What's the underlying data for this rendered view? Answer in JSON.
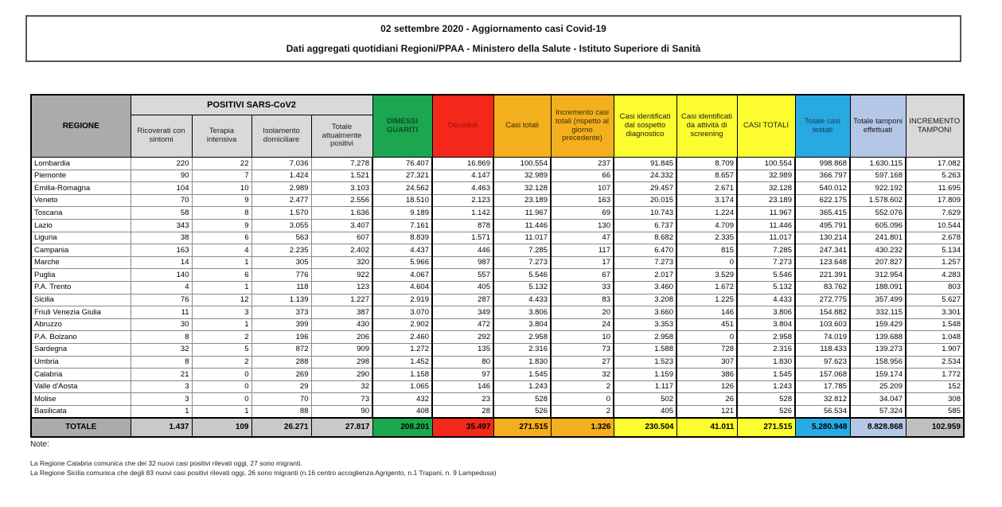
{
  "title": {
    "line1": "02 settembre 2020 - Aggiornamento casi Covid-19",
    "line2": "Dati aggregati quotidiani Regioni/PPAA - Ministero della Salute - Istituto Superiore di Sanità"
  },
  "table": {
    "header": {
      "regione": "REGIONE",
      "positivi_group": "POSITIVI SARS-CoV2",
      "sub": [
        "Ricoverati con sintomi",
        "Terapia intensiva",
        "Isolamento domiciliare",
        "Totale attualmente positivi"
      ],
      "colored": [
        "DIMESSI GUARITI",
        "Deceduti",
        "Casi totali",
        "Incremento casi totali (rispetto al giorno precedente)",
        "Casi identificati dal sospetto diagnostico",
        "Casi identificati da attività di screening",
        "CASI TOTALI",
        "Totale casi testati",
        "Totale tamponi effettuati",
        "INCREMENTO TAMPONI"
      ]
    },
    "rows": [
      {
        "region": "Lombardia",
        "values": [
          "220",
          "22",
          "7.036",
          "7.278",
          "76.407",
          "16.869",
          "100.554",
          "237",
          "91.845",
          "8.709",
          "100.554",
          "998.868",
          "1.630.115",
          "17.082"
        ]
      },
      {
        "region": "Piemonte",
        "values": [
          "90",
          "7",
          "1.424",
          "1.521",
          "27.321",
          "4.147",
          "32.989",
          "66",
          "24.332",
          "8.657",
          "32.989",
          "366.797",
          "597.168",
          "5.263"
        ]
      },
      {
        "region": "Emilia-Romagna",
        "values": [
          "104",
          "10",
          "2.989",
          "3.103",
          "24.562",
          "4.463",
          "32.128",
          "107",
          "29.457",
          "2.671",
          "32.128",
          "540.012",
          "922.192",
          "11.695"
        ]
      },
      {
        "region": "Veneto",
        "values": [
          "70",
          "9",
          "2.477",
          "2.556",
          "18.510",
          "2.123",
          "23.189",
          "163",
          "20.015",
          "3.174",
          "23.189",
          "622.175",
          "1.578.602",
          "17.809"
        ]
      },
      {
        "region": "Toscana",
        "values": [
          "58",
          "8",
          "1.570",
          "1.636",
          "9.189",
          "1.142",
          "11.967",
          "69",
          "10.743",
          "1.224",
          "11.967",
          "365.415",
          "552.076",
          "7.629"
        ]
      },
      {
        "region": "Lazio",
        "values": [
          "343",
          "9",
          "3.055",
          "3.407",
          "7.161",
          "878",
          "11.446",
          "130",
          "6.737",
          "4.709",
          "11.446",
          "495.791",
          "605.096",
          "10.544"
        ]
      },
      {
        "region": "Liguria",
        "values": [
          "38",
          "6",
          "563",
          "607",
          "8.839",
          "1.571",
          "11.017",
          "47",
          "8.682",
          "2.335",
          "11.017",
          "130.214",
          "241.801",
          "2.678"
        ]
      },
      {
        "region": "Campania",
        "values": [
          "163",
          "4",
          "2.235",
          "2.402",
          "4.437",
          "446",
          "7.285",
          "117",
          "6.470",
          "815",
          "7.285",
          "247.341",
          "430.232",
          "5.134"
        ]
      },
      {
        "region": "Marche",
        "values": [
          "14",
          "1",
          "305",
          "320",
          "5.966",
          "987",
          "7.273",
          "17",
          "7.273",
          "0",
          "7.273",
          "123.648",
          "207.827",
          "1.257"
        ]
      },
      {
        "region": "Puglia",
        "values": [
          "140",
          "6",
          "776",
          "922",
          "4.067",
          "557",
          "5.546",
          "67",
          "2.017",
          "3.529",
          "5.546",
          "221.391",
          "312.954",
          "4.283"
        ]
      },
      {
        "region": "P.A. Trento",
        "values": [
          "4",
          "1",
          "118",
          "123",
          "4.604",
          "405",
          "5.132",
          "33",
          "3.460",
          "1.672",
          "5.132",
          "83.762",
          "188.091",
          "803"
        ]
      },
      {
        "region": "Sicilia",
        "values": [
          "76",
          "12",
          "1.139",
          "1.227",
          "2.919",
          "287",
          "4.433",
          "83",
          "3.208",
          "1.225",
          "4.433",
          "272.775",
          "357.499",
          "5.627"
        ]
      },
      {
        "region": "Friuli Venezia Giulia",
        "values": [
          "11",
          "3",
          "373",
          "387",
          "3.070",
          "349",
          "3.806",
          "20",
          "3.660",
          "146",
          "3.806",
          "154.882",
          "332.115",
          "3.301"
        ]
      },
      {
        "region": "Abruzzo",
        "values": [
          "30",
          "1",
          "399",
          "430",
          "2.902",
          "472",
          "3.804",
          "24",
          "3.353",
          "451",
          "3.804",
          "103.603",
          "159.429",
          "1.548"
        ]
      },
      {
        "region": "P.A. Bolzano",
        "values": [
          "8",
          "2",
          "196",
          "206",
          "2.460",
          "292",
          "2.958",
          "10",
          "2.958",
          "0",
          "2.958",
          "74.019",
          "139.688",
          "1.048"
        ]
      },
      {
        "region": "Sardegna",
        "values": [
          "32",
          "5",
          "872",
          "909",
          "1.272",
          "135",
          "2.316",
          "73",
          "1.588",
          "728",
          "2.316",
          "118.433",
          "139.273",
          "1.907"
        ]
      },
      {
        "region": "Umbria",
        "values": [
          "8",
          "2",
          "288",
          "298",
          "1.452",
          "80",
          "1.830",
          "27",
          "1.523",
          "307",
          "1.830",
          "97.623",
          "158.956",
          "2.534"
        ]
      },
      {
        "region": "Calabria",
        "values": [
          "21",
          "0",
          "269",
          "290",
          "1.158",
          "97",
          "1.545",
          "32",
          "1.159",
          "386",
          "1.545",
          "157.068",
          "159.174",
          "1.772"
        ]
      },
      {
        "region": "Valle d'Aosta",
        "values": [
          "3",
          "0",
          "29",
          "32",
          "1.065",
          "146",
          "1.243",
          "2",
          "1.117",
          "126",
          "1.243",
          "17.785",
          "25.209",
          "152"
        ]
      },
      {
        "region": "Molise",
        "values": [
          "3",
          "0",
          "70",
          "73",
          "432",
          "23",
          "528",
          "0",
          "502",
          "26",
          "528",
          "32.812",
          "34.047",
          "308"
        ]
      },
      {
        "region": "Basilicata",
        "values": [
          "1",
          "1",
          "88",
          "90",
          "408",
          "28",
          "526",
          "2",
          "405",
          "121",
          "526",
          "56.534",
          "57.324",
          "585"
        ]
      }
    ],
    "total": {
      "label": "TOTALE",
      "values": [
        "1.437",
        "109",
        "26.271",
        "27.817",
        "208.201",
        "35.497",
        "271.515",
        "1.326",
        "230.504",
        "41.011",
        "271.515",
        "5.280.948",
        "8.828.868",
        "102.959"
      ]
    }
  },
  "notes": {
    "title": "Note:",
    "lines": [
      "La Regione Calabria comunica che dei 32 nuovi casi positivi rilevati oggi, 27 sono migranti.",
      "La Regione Sicilia comunica che degli 83 nuovi casi positivi rilevati oggi, 26 sono migranti (n.16 centro accoglienza Agrigento, n.1 Trapani, n. 9 Lampedusa)"
    ]
  },
  "colors": {
    "green": "#1BA64F",
    "red": "#F3281A",
    "orange": "#F4AF1E",
    "yellow": "#FCFC2F",
    "blue": "#29A9E1",
    "light_blue": "#B4C7E7",
    "header_gray": "#ABABAB",
    "subheader_gray": "#D9D9D9",
    "total_gray": "#C9C9C9",
    "increment_gray": "#C0C0C0"
  }
}
